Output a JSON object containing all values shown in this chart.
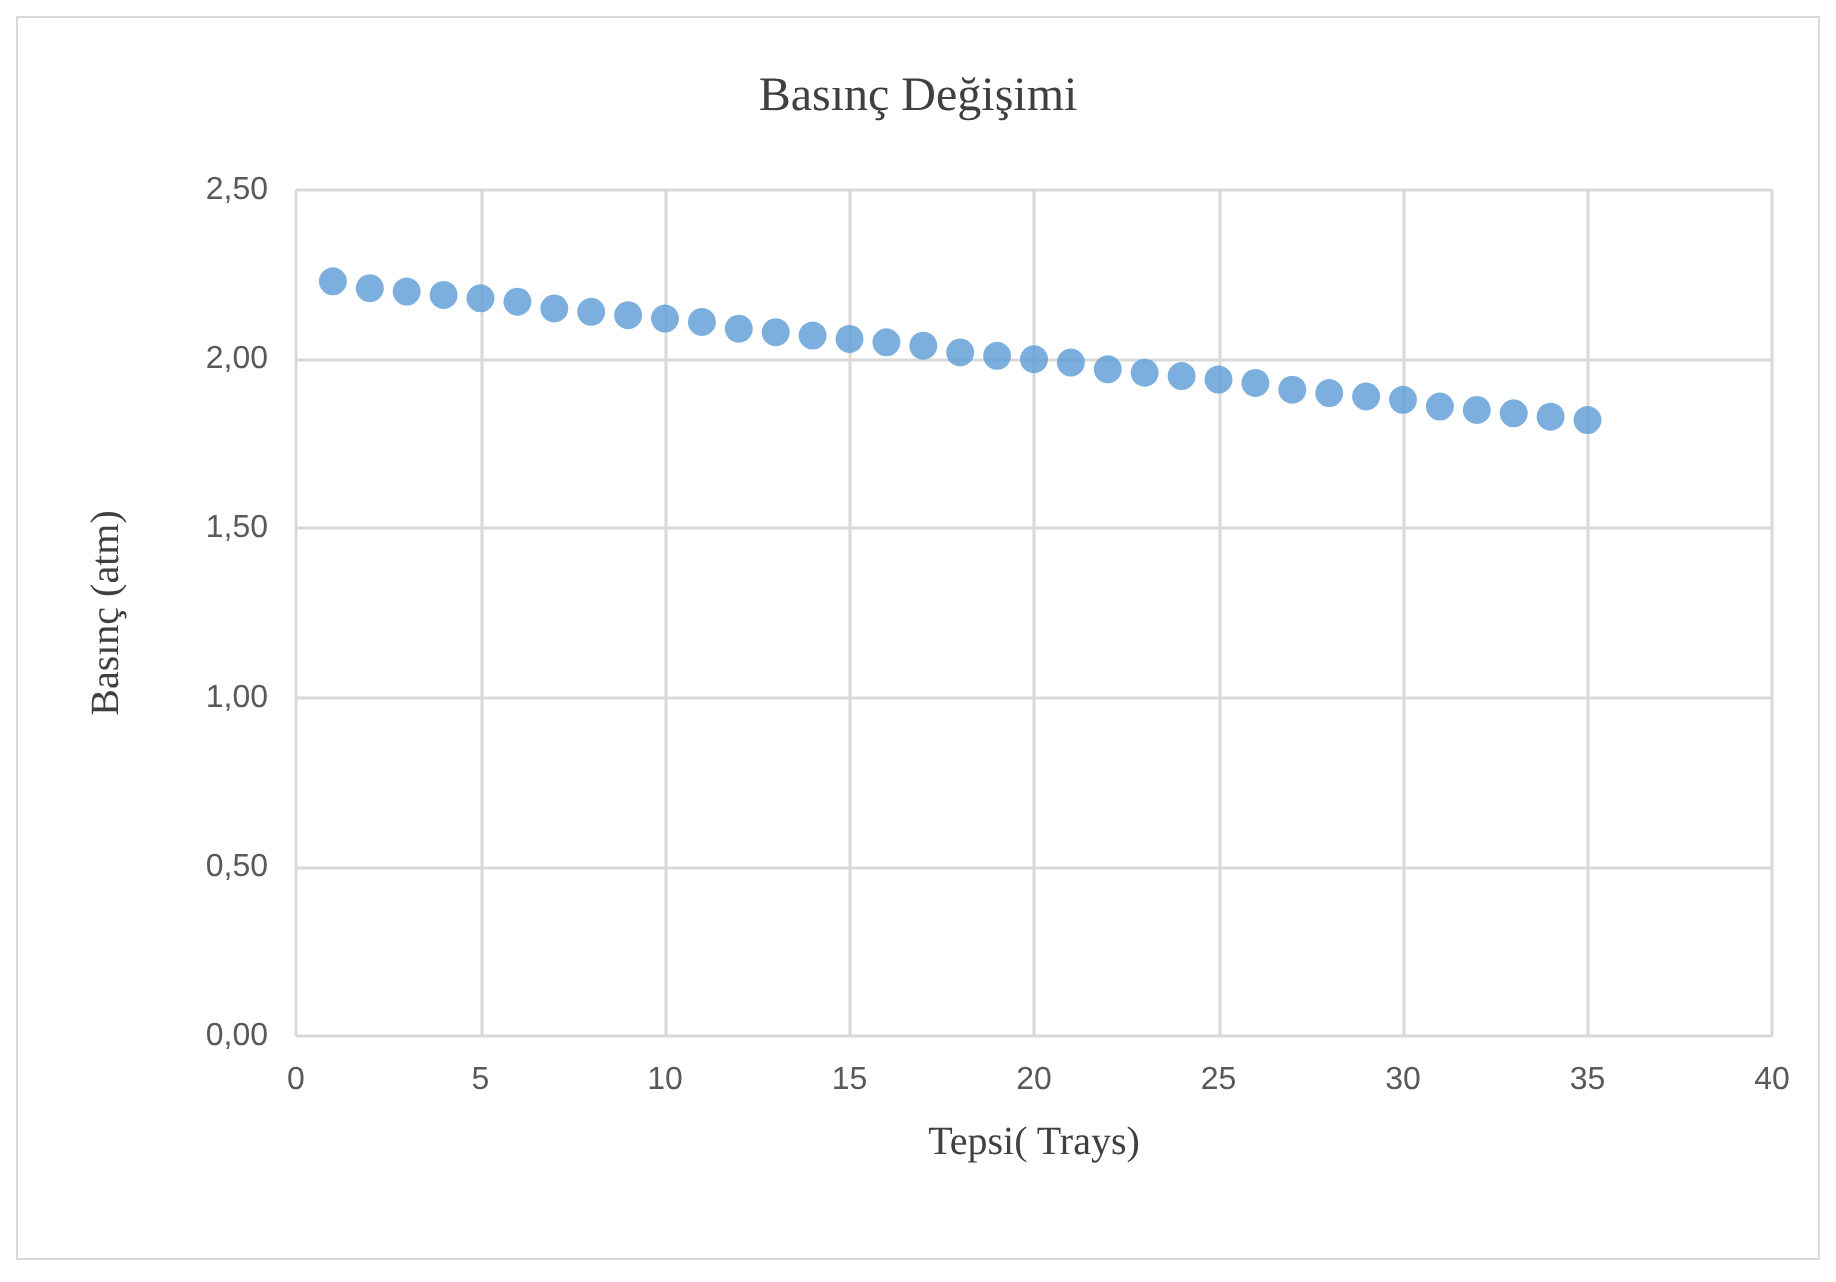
{
  "chart_data": {
    "type": "scatter",
    "title": "Basınç Değişimi",
    "xlabel": "Tepsi( Trays)",
    "ylabel": "Basınç (atm)",
    "x": [
      1,
      2,
      3,
      4,
      5,
      6,
      7,
      8,
      9,
      10,
      11,
      12,
      13,
      14,
      15,
      16,
      17,
      18,
      19,
      20,
      21,
      22,
      23,
      24,
      25,
      26,
      27,
      28,
      29,
      30,
      31,
      32,
      33,
      34,
      35
    ],
    "series": [
      {
        "color": "#5b9bd5",
        "values": [
          2.23,
          2.21,
          2.2,
          2.19,
          2.18,
          2.17,
          2.15,
          2.14,
          2.13,
          2.12,
          2.11,
          2.09,
          2.08,
          2.07,
          2.06,
          2.05,
          2.04,
          2.02,
          2.01,
          2.0,
          1.99,
          1.97,
          1.96,
          1.95,
          1.94,
          1.93,
          1.91,
          1.9,
          1.89,
          1.88,
          1.86,
          1.85,
          1.84,
          1.83,
          1.82
        ]
      }
    ],
    "xlim": [
      0,
      40
    ],
    "xticks": [
      0,
      5,
      10,
      15,
      20,
      25,
      30,
      35,
      40
    ],
    "ylim": [
      0,
      2.5
    ],
    "yticks": [
      {
        "value": 0,
        "label": "0,00"
      },
      {
        "value": 0.5,
        "label": "0,50"
      },
      {
        "value": 1,
        "label": "1,00"
      },
      {
        "value": 1.5,
        "label": "1,50"
      },
      {
        "value": 2,
        "label": "2,00"
      },
      {
        "value": 2.5,
        "label": "2,50"
      }
    ],
    "grid": true,
    "marker": "circle"
  }
}
